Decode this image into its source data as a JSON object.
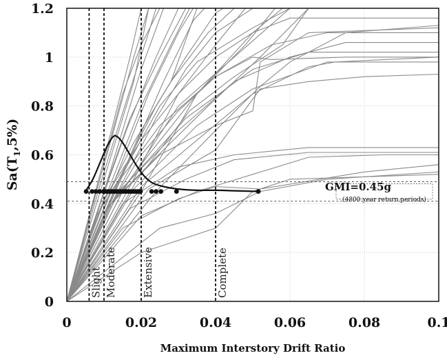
{
  "chart_data": {
    "type": "line",
    "xlabel": "Maximum Interstory Drift Ratio",
    "ylabel": "Sa(T",
    "ylabel_sub": "1",
    "ylabel_tail": ",5%)",
    "xlim": [
      0,
      0.1
    ],
    "ylim": [
      0,
      1.2
    ],
    "x_ticks": [
      0,
      0.02,
      0.04,
      0.06,
      0.08,
      0.1
    ],
    "x_tick_labels": [
      "0",
      "0.02",
      "0.04",
      "0.06",
      "0.08",
      "0.1"
    ],
    "y_ticks": [
      0,
      0.2,
      0.4,
      0.6,
      0.8,
      1.0,
      1.2
    ],
    "y_tick_labels": [
      "0",
      "0.2",
      "0.4",
      "0.6",
      "0.8",
      "1",
      "1.2"
    ],
    "grid": true,
    "limit_states": [
      {
        "label": "Slight",
        "x": 0.006
      },
      {
        "label": "Moderate",
        "x": 0.01
      },
      {
        "label": "Extensive",
        "x": 0.02
      },
      {
        "label": "Complete",
        "x": 0.04
      }
    ],
    "gmi": {
      "label": "GMI=0.45g",
      "sublabel": "(4800 year return periods)",
      "value": 0.45,
      "band": [
        0.41,
        0.49
      ]
    },
    "drift_points_at_gmi": [
      0.0052,
      0.0068,
      0.0078,
      0.0088,
      0.0098,
      0.0105,
      0.011,
      0.0115,
      0.012,
      0.0125,
      0.013,
      0.0135,
      0.014,
      0.0145,
      0.015,
      0.0155,
      0.016,
      0.0165,
      0.017,
      0.0175,
      0.018,
      0.0185,
      0.019,
      0.0195,
      0.0198,
      0.0228,
      0.024,
      0.0253,
      0.0295,
      0.0515
    ],
    "distribution_curve": [
      [
        0.005,
        0.45
      ],
      [
        0.007,
        0.5
      ],
      [
        0.009,
        0.57
      ],
      [
        0.011,
        0.64
      ],
      [
        0.0125,
        0.675
      ],
      [
        0.0135,
        0.675
      ],
      [
        0.015,
        0.65
      ],
      [
        0.017,
        0.6
      ],
      [
        0.019,
        0.55
      ],
      [
        0.021,
        0.51
      ],
      [
        0.023,
        0.485
      ],
      [
        0.026,
        0.47
      ],
      [
        0.03,
        0.46
      ],
      [
        0.035,
        0.455
      ],
      [
        0.04,
        0.455
      ],
      [
        0.045,
        0.453
      ],
      [
        0.0515,
        0.45
      ]
    ],
    "ida_curves": [
      [
        [
          0,
          0
        ],
        [
          0.01,
          0.35
        ],
        [
          0.02,
          0.7
        ],
        [
          0.028,
          0.9
        ],
        [
          0.035,
          1.2
        ]
      ],
      [
        [
          0,
          0
        ],
        [
          0.012,
          0.4
        ],
        [
          0.024,
          0.75
        ],
        [
          0.032,
          0.95
        ],
        [
          0.04,
          1.1
        ],
        [
          0.05,
          1.2
        ]
      ],
      [
        [
          0,
          0
        ],
        [
          0.008,
          0.45
        ],
        [
          0.015,
          0.85
        ],
        [
          0.02,
          1.05
        ],
        [
          0.025,
          1.2
        ]
      ],
      [
        [
          0,
          0
        ],
        [
          0.01,
          0.5
        ],
        [
          0.018,
          0.9
        ],
        [
          0.022,
          1.2
        ]
      ],
      [
        [
          0,
          0
        ],
        [
          0.015,
          0.45
        ],
        [
          0.03,
          0.8
        ],
        [
          0.045,
          1.0
        ],
        [
          0.06,
          1.2
        ]
      ],
      [
        [
          0,
          0
        ],
        [
          0.007,
          0.3
        ],
        [
          0.014,
          0.65
        ],
        [
          0.02,
          0.95
        ],
        [
          0.026,
          1.2
        ]
      ],
      [
        [
          0,
          0
        ],
        [
          0.02,
          0.45
        ],
        [
          0.035,
          0.85
        ],
        [
          0.05,
          1.1
        ],
        [
          0.058,
          1.2
        ]
      ],
      [
        [
          0,
          0
        ],
        [
          0.009,
          0.4
        ],
        [
          0.016,
          0.7
        ],
        [
          0.024,
          1.0
        ],
        [
          0.03,
          1.2
        ]
      ],
      [
        [
          0,
          0
        ],
        [
          0.011,
          0.45
        ],
        [
          0.02,
          0.8
        ],
        [
          0.028,
          1.05
        ],
        [
          0.033,
          1.2
        ]
      ],
      [
        [
          0,
          0
        ],
        [
          0.006,
          0.35
        ],
        [
          0.012,
          0.7
        ],
        [
          0.017,
          1.0
        ],
        [
          0.02,
          1.2
        ]
      ],
      [
        [
          0,
          0
        ],
        [
          0.013,
          0.5
        ],
        [
          0.022,
          0.85
        ],
        [
          0.03,
          1.1
        ],
        [
          0.034,
          1.2
        ]
      ],
      [
        [
          0,
          0
        ],
        [
          0.016,
          0.55
        ],
        [
          0.026,
          0.9
        ],
        [
          0.034,
          1.15
        ],
        [
          0.037,
          1.2
        ]
      ],
      [
        [
          0,
          0
        ],
        [
          0.018,
          0.5
        ],
        [
          0.03,
          0.85
        ],
        [
          0.04,
          1.05
        ],
        [
          0.048,
          1.2
        ]
      ],
      [
        [
          0,
          0
        ],
        [
          0.01,
          0.42
        ],
        [
          0.02,
          0.66
        ],
        [
          0.03,
          0.85
        ],
        [
          0.04,
          1.0
        ],
        [
          0.05,
          1.1
        ],
        [
          0.06,
          1.16
        ],
        [
          0.1,
          1.16
        ]
      ],
      [
        [
          0,
          0
        ],
        [
          0.012,
          0.45
        ],
        [
          0.025,
          0.72
        ],
        [
          0.04,
          0.92
        ],
        [
          0.055,
          1.05
        ],
        [
          0.07,
          1.1
        ],
        [
          0.1,
          1.1
        ]
      ],
      [
        [
          0,
          0
        ],
        [
          0.014,
          0.45
        ],
        [
          0.03,
          0.7
        ],
        [
          0.045,
          0.9
        ],
        [
          0.06,
          1.0
        ],
        [
          0.075,
          1.06
        ],
        [
          0.1,
          1.06
        ]
      ],
      [
        [
          0,
          0
        ],
        [
          0.016,
          0.48
        ],
        [
          0.032,
          0.75
        ],
        [
          0.05,
          0.95
        ],
        [
          0.065,
          1.02
        ],
        [
          0.1,
          1.02
        ]
      ],
      [
        [
          0,
          0
        ],
        [
          0.018,
          0.46
        ],
        [
          0.035,
          0.72
        ],
        [
          0.05,
          0.87
        ],
        [
          0.07,
          0.98
        ],
        [
          0.1,
          0.98
        ]
      ],
      [
        [
          0,
          0
        ],
        [
          0.02,
          0.47
        ],
        [
          0.035,
          0.66
        ],
        [
          0.05,
          0.85
        ],
        [
          0.065,
          0.96
        ],
        [
          0.072,
          0.98
        ],
        [
          0.1,
          1.0
        ]
      ],
      [
        [
          0,
          0
        ],
        [
          0.022,
          0.46
        ],
        [
          0.04,
          0.62
        ],
        [
          0.052,
          0.87
        ],
        [
          0.065,
          0.9
        ],
        [
          0.08,
          0.92
        ],
        [
          0.1,
          0.93
        ]
      ],
      [
        [
          0,
          0
        ],
        [
          0.012,
          0.4
        ],
        [
          0.025,
          0.6
        ],
        [
          0.04,
          0.72
        ],
        [
          0.05,
          0.78
        ],
        [
          0.052,
          0.98
        ],
        [
          0.065,
          1.1
        ],
        [
          0.1,
          1.12
        ]
      ],
      [
        [
          0,
          0
        ],
        [
          0.015,
          0.4
        ],
        [
          0.03,
          0.55
        ],
        [
          0.045,
          0.6
        ],
        [
          0.065,
          0.63
        ],
        [
          0.1,
          0.63
        ]
      ],
      [
        [
          0,
          0
        ],
        [
          0.017,
          0.38
        ],
        [
          0.032,
          0.5
        ],
        [
          0.045,
          0.58
        ],
        [
          0.065,
          0.61
        ],
        [
          0.1,
          0.61
        ]
      ],
      [
        [
          0,
          0
        ],
        [
          0.02,
          0.35
        ],
        [
          0.035,
          0.45
        ],
        [
          0.05,
          0.52
        ],
        [
          0.065,
          0.59
        ],
        [
          0.085,
          0.6
        ],
        [
          0.1,
          0.6
        ]
      ],
      [
        [
          0,
          0
        ],
        [
          0.025,
          0.3
        ],
        [
          0.04,
          0.36
        ],
        [
          0.052,
          0.45
        ],
        [
          0.07,
          0.5
        ],
        [
          0.1,
          0.53
        ]
      ],
      [
        [
          0,
          0
        ],
        [
          0.015,
          0.3
        ],
        [
          0.03,
          0.42
        ],
        [
          0.04,
          0.47
        ],
        [
          0.052,
          0.46
        ],
        [
          0.08,
          0.53
        ],
        [
          0.1,
          0.56
        ]
      ],
      [
        [
          0,
          0
        ],
        [
          0.02,
          0.2
        ],
        [
          0.03,
          0.25
        ],
        [
          0.04,
          0.3
        ],
        [
          0.05,
          0.45
        ],
        [
          0.06,
          0.5
        ],
        [
          0.1,
          0.52
        ]
      ],
      [
        [
          0,
          0
        ],
        [
          0.008,
          0.35
        ],
        [
          0.016,
          0.55
        ],
        [
          0.025,
          0.8
        ],
        [
          0.035,
          0.98
        ],
        [
          0.05,
          1.12
        ],
        [
          0.06,
          1.2
        ]
      ],
      [
        [
          0,
          0
        ],
        [
          0.009,
          0.38
        ],
        [
          0.018,
          0.65
        ],
        [
          0.028,
          0.9
        ],
        [
          0.038,
          1.1
        ],
        [
          0.045,
          1.2
        ]
      ],
      [
        [
          0,
          0
        ],
        [
          0.011,
          0.38
        ],
        [
          0.022,
          0.6
        ],
        [
          0.035,
          0.85
        ],
        [
          0.048,
          1.05
        ],
        [
          0.056,
          1.2
        ]
      ],
      [
        [
          0,
          0
        ],
        [
          0.013,
          0.42
        ],
        [
          0.026,
          0.62
        ],
        [
          0.038,
          0.8
        ],
        [
          0.052,
          1.0
        ],
        [
          0.065,
          1.2
        ]
      ],
      [
        [
          0,
          0
        ],
        [
          0.007,
          0.4
        ],
        [
          0.013,
          0.72
        ],
        [
          0.018,
          1.0
        ],
        [
          0.022,
          1.2
        ]
      ],
      [
        [
          0,
          0
        ],
        [
          0.01,
          0.45
        ],
        [
          0.017,
          0.75
        ],
        [
          0.025,
          1.0
        ],
        [
          0.032,
          1.2
        ]
      ],
      [
        [
          0,
          0
        ],
        [
          0.012,
          0.4
        ],
        [
          0.02,
          0.6
        ],
        [
          0.03,
          0.78
        ],
        [
          0.04,
          0.92
        ],
        [
          0.05,
          1.0
        ],
        [
          0.055,
          0.99
        ],
        [
          0.075,
          1.0
        ],
        [
          0.1,
          1.0
        ]
      ],
      [
        [
          0,
          0
        ],
        [
          0.024,
          0.45
        ],
        [
          0.04,
          0.7
        ],
        [
          0.052,
          0.88
        ],
        [
          0.06,
          0.98
        ],
        [
          0.075,
          1.1
        ],
        [
          0.1,
          1.13
        ]
      ],
      [
        [
          0,
          0
        ],
        [
          0.014,
          0.5
        ],
        [
          0.024,
          0.8
        ],
        [
          0.032,
          1.0
        ],
        [
          0.04,
          1.18
        ],
        [
          0.042,
          1.2
        ]
      ],
      [
        [
          0,
          0
        ],
        [
          0.009,
          0.48
        ],
        [
          0.016,
          0.82
        ],
        [
          0.022,
          1.1
        ],
        [
          0.024,
          1.2
        ]
      ],
      [
        [
          0,
          0
        ],
        [
          0.019,
          0.5
        ],
        [
          0.033,
          0.78
        ],
        [
          0.045,
          0.92
        ],
        [
          0.058,
          1.05
        ],
        [
          0.065,
          1.2
        ]
      ]
    ]
  }
}
